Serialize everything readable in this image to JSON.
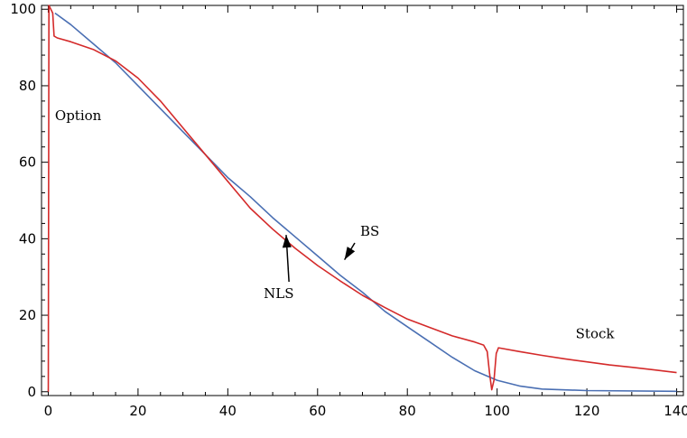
{
  "chart_data": {
    "type": "line",
    "title": "",
    "xlabel": "",
    "ylabel": "",
    "xlim": [
      -1.5,
      141.5
    ],
    "ylim": [
      -1,
      101
    ],
    "grid": false,
    "legend": "none",
    "x_ticks": [
      0,
      20,
      40,
      60,
      80,
      100,
      120,
      140
    ],
    "y_ticks": [
      0,
      20,
      40,
      60,
      80,
      100
    ],
    "colors": {
      "red_series": "#d42a2a",
      "blue_series": "#4a6fb3",
      "axes": "#000000",
      "arrow": "#000000"
    },
    "series": [
      {
        "color": "red",
        "points": [
          [
            0,
            0
          ],
          [
            0.15,
            101
          ],
          [
            1,
            99
          ],
          [
            1.3,
            93
          ],
          [
            2,
            92.5
          ],
          [
            5,
            91.5
          ],
          [
            10,
            89.5
          ],
          [
            15,
            86.5
          ],
          [
            20,
            82
          ],
          [
            25,
            76
          ],
          [
            30,
            69
          ],
          [
            35,
            62
          ],
          [
            40,
            55
          ],
          [
            45,
            48
          ],
          [
            50,
            42.5
          ],
          [
            55,
            37.5
          ],
          [
            60,
            33
          ],
          [
            65,
            29
          ],
          [
            70,
            25.2
          ],
          [
            75,
            22
          ],
          [
            80,
            19
          ],
          [
            85,
            16.8
          ],
          [
            90,
            14.6
          ],
          [
            95,
            13
          ],
          [
            97,
            12.2
          ],
          [
            97.8,
            10.5
          ],
          [
            98.3,
            5
          ],
          [
            98.8,
            0.5
          ],
          [
            99.3,
            3
          ],
          [
            99.8,
            10
          ],
          [
            100.3,
            11.5
          ],
          [
            105,
            10.5
          ],
          [
            110,
            9.5
          ],
          [
            115,
            8.6
          ],
          [
            120,
            7.8
          ],
          [
            125,
            7
          ],
          [
            130,
            6.4
          ],
          [
            135,
            5.7
          ],
          [
            140,
            5
          ]
        ]
      },
      {
        "color": "blue",
        "points": [
          [
            1.5,
            99
          ],
          [
            5,
            96
          ],
          [
            10,
            91
          ],
          [
            15,
            86
          ],
          [
            20,
            80
          ],
          [
            25,
            74
          ],
          [
            30,
            68
          ],
          [
            35,
            62
          ],
          [
            40,
            56
          ],
          [
            45,
            51
          ],
          [
            50,
            45.5
          ],
          [
            55,
            40.5
          ],
          [
            60,
            35.5
          ],
          [
            65,
            30.5
          ],
          [
            70,
            26
          ],
          [
            75,
            21
          ],
          [
            80,
            17
          ],
          [
            85,
            13
          ],
          [
            90,
            9
          ],
          [
            95,
            5.5
          ],
          [
            100,
            3
          ],
          [
            105,
            1.5
          ],
          [
            110,
            0.7
          ],
          [
            120,
            0.3
          ],
          [
            140,
            0.1
          ]
        ]
      }
    ],
    "annotations": [
      {
        "text": "Option",
        "x": 1.5,
        "y": 71
      },
      {
        "text": "NLS",
        "x": 48,
        "y": 24.5,
        "arrow_to": [
          53,
          41
        ]
      },
      {
        "text": "BS",
        "x": 69.5,
        "y": 40.8,
        "arrow_to": [
          66,
          34.5
        ]
      },
      {
        "text": "Stock",
        "x": 117.5,
        "y": 14
      }
    ]
  }
}
